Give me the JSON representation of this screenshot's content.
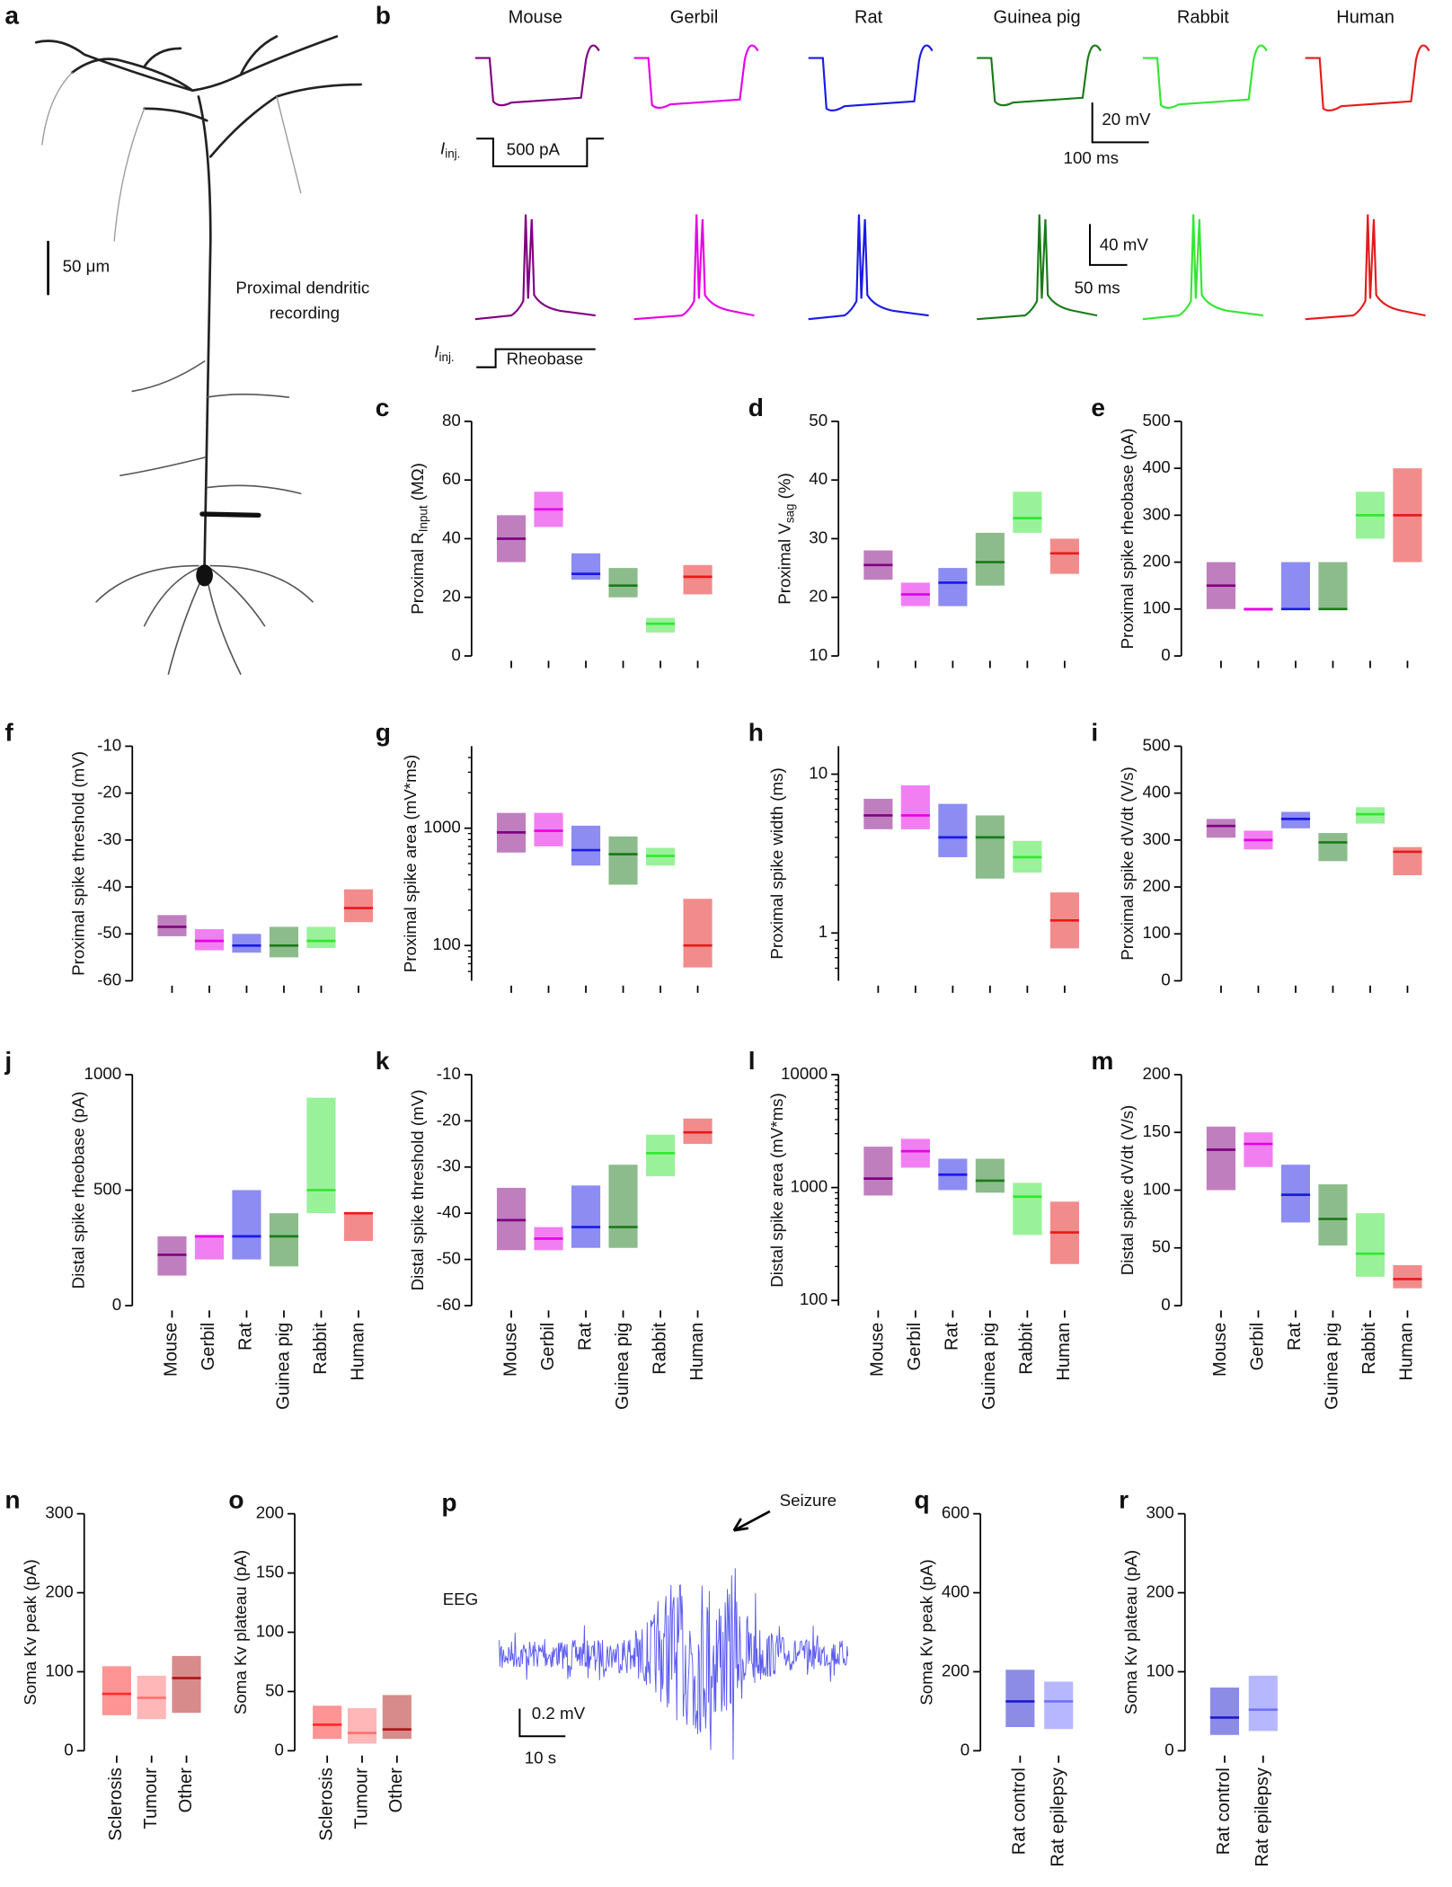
{
  "figure": {
    "a": {
      "letter": "a",
      "scale": "50 μm",
      "note": [
        "Proximal dendritic",
        "recording"
      ]
    },
    "b": {
      "letter": "b",
      "species": [
        {
          "name": "Mouse",
          "color": "#800080"
        },
        {
          "name": "Gerbil",
          "color": "#e600e6"
        },
        {
          "name": "Rat",
          "color": "#1a1ae6"
        },
        {
          "name": "Guinea pig",
          "color": "#1a7a1a"
        },
        {
          "name": "Rabbit",
          "color": "#33e633"
        },
        {
          "name": "Human",
          "color": "#e61a1a"
        }
      ],
      "inj_main": "I",
      "inj_sub": "inj.",
      "step": "500 pA",
      "rheobase": "Rheobase",
      "v1": "20 mV",
      "t1": "100 ms",
      "v2": "40 mV",
      "t2": "50 ms"
    },
    "p": {
      "letter": "p",
      "arrow": "Seizure",
      "trace": "EEG",
      "v": "0.2 mV",
      "t": "10 s"
    }
  },
  "chart_data": [
    {
      "type": "box",
      "panel": "c",
      "ylabel": "Proximal R",
      "ylabel_sub": "Input",
      "ylabel_end": " (MΩ)",
      "ylim": [
        0,
        80
      ],
      "yticks": [
        0,
        20,
        40,
        60,
        80
      ],
      "log": false,
      "boxes": [
        {
          "color": "#800080",
          "q1": 32,
          "median": 40,
          "q3": 48
        },
        {
          "color": "#e600e6",
          "q1": 44,
          "median": 50,
          "q3": 56
        },
        {
          "color": "#1a1ae6",
          "q1": 26,
          "median": 28,
          "q3": 35
        },
        {
          "color": "#1a7a1a",
          "q1": 20,
          "median": 24,
          "q3": 30
        },
        {
          "color": "#33e633",
          "q1": 8,
          "median": 11,
          "q3": 13
        },
        {
          "color": "#e61a1a",
          "q1": 21,
          "median": 27,
          "q3": 31
        }
      ]
    },
    {
      "type": "box",
      "panel": "d",
      "ylabel": "Proximal V",
      "ylabel_sub": "sag",
      "ylabel_end": " (%)",
      "ylim": [
        10,
        50
      ],
      "yticks": [
        10,
        20,
        30,
        40,
        50
      ],
      "log": false,
      "boxes": [
        {
          "color": "#800080",
          "q1": 23,
          "median": 25.5,
          "q3": 28
        },
        {
          "color": "#e600e6",
          "q1": 18.5,
          "median": 20.5,
          "q3": 22.5
        },
        {
          "color": "#1a1ae6",
          "q1": 18.5,
          "median": 22.5,
          "q3": 25
        },
        {
          "color": "#1a7a1a",
          "q1": 22,
          "median": 26,
          "q3": 31
        },
        {
          "color": "#33e633",
          "q1": 31,
          "median": 33.5,
          "q3": 38
        },
        {
          "color": "#e61a1a",
          "q1": 24,
          "median": 27.5,
          "q3": 30
        }
      ]
    },
    {
      "type": "box",
      "panel": "e",
      "ylabel": "Proximal spike rheobase (pA)",
      "ylim": [
        0,
        500
      ],
      "yticks": [
        0,
        100,
        200,
        300,
        400,
        500
      ],
      "log": false,
      "boxes": [
        {
          "color": "#800080",
          "q1": 100,
          "median": 150,
          "q3": 200
        },
        {
          "color": "#e600e6",
          "q1": 100,
          "median": 100,
          "q3": 100
        },
        {
          "color": "#1a1ae6",
          "q1": 100,
          "median": 100,
          "q3": 200
        },
        {
          "color": "#1a7a1a",
          "q1": 100,
          "median": 100,
          "q3": 200
        },
        {
          "color": "#33e633",
          "q1": 250,
          "median": 300,
          "q3": 350
        },
        {
          "color": "#e61a1a",
          "q1": 200,
          "median": 300,
          "q3": 400
        }
      ]
    },
    {
      "type": "box",
      "panel": "f",
      "ylabel": "Proximal spike threshold (mV)",
      "ylim": [
        -60,
        -10
      ],
      "yticks": [
        -60,
        -50,
        -40,
        -30,
        -20,
        -10
      ],
      "log": false,
      "boxes": [
        {
          "color": "#800080",
          "q1": -50.5,
          "median": -48.5,
          "q3": -46
        },
        {
          "color": "#e600e6",
          "q1": -53.5,
          "median": -51.5,
          "q3": -49
        },
        {
          "color": "#1a1ae6",
          "q1": -54,
          "median": -52.5,
          "q3": -50
        },
        {
          "color": "#1a7a1a",
          "q1": -55,
          "median": -52.5,
          "q3": -48.5
        },
        {
          "color": "#33e633",
          "q1": -53,
          "median": -51.5,
          "q3": -48.5
        },
        {
          "color": "#e61a1a",
          "q1": -47.5,
          "median": -44.5,
          "q3": -40.5
        }
      ]
    },
    {
      "type": "box",
      "panel": "g",
      "ylabel": "Proximal spike area (mV*ms)",
      "ylim": [
        50,
        5000
      ],
      "yticks": [
        100,
        1000
      ],
      "log": true,
      "boxes": [
        {
          "color": "#800080",
          "q1": 620,
          "median": 920,
          "q3": 1350
        },
        {
          "color": "#e600e6",
          "q1": 700,
          "median": 950,
          "q3": 1350
        },
        {
          "color": "#1a1ae6",
          "q1": 480,
          "median": 650,
          "q3": 1050
        },
        {
          "color": "#1a7a1a",
          "q1": 330,
          "median": 600,
          "q3": 850
        },
        {
          "color": "#33e633",
          "q1": 480,
          "median": 580,
          "q3": 680
        },
        {
          "color": "#e61a1a",
          "q1": 65,
          "median": 100,
          "q3": 250
        }
      ]
    },
    {
      "type": "box",
      "panel": "h",
      "ylabel": "Proximal spike width (ms)",
      "ylim": [
        0.5,
        15
      ],
      "yticks": [
        1,
        10
      ],
      "log": true,
      "boxes": [
        {
          "color": "#800080",
          "q1": 4.5,
          "median": 5.5,
          "q3": 7
        },
        {
          "color": "#e600e6",
          "q1": 4.5,
          "median": 5.5,
          "q3": 8.5
        },
        {
          "color": "#1a1ae6",
          "q1": 3,
          "median": 4,
          "q3": 6.5
        },
        {
          "color": "#1a7a1a",
          "q1": 2.2,
          "median": 4,
          "q3": 5.5
        },
        {
          "color": "#33e633",
          "q1": 2.4,
          "median": 3,
          "q3": 3.8
        },
        {
          "color": "#e61a1a",
          "q1": 0.8,
          "median": 1.2,
          "q3": 1.8
        }
      ]
    },
    {
      "type": "box",
      "panel": "i",
      "ylabel": "Proximal spike dV/dt (V/s)",
      "ylim": [
        0,
        500
      ],
      "yticks": [
        0,
        100,
        200,
        300,
        400,
        500
      ],
      "log": false,
      "boxes": [
        {
          "color": "#800080",
          "q1": 305,
          "median": 330,
          "q3": 345
        },
        {
          "color": "#e600e6",
          "q1": 280,
          "median": 300,
          "q3": 320
        },
        {
          "color": "#1a1ae6",
          "q1": 325,
          "median": 345,
          "q3": 360
        },
        {
          "color": "#1a7a1a",
          "q1": 255,
          "median": 295,
          "q3": 315
        },
        {
          "color": "#33e633",
          "q1": 335,
          "median": 355,
          "q3": 370
        },
        {
          "color": "#e61a1a",
          "q1": 225,
          "median": 275,
          "q3": 285
        }
      ]
    },
    {
      "type": "box",
      "panel": "j",
      "ylabel": "Distal spike rheobase (pA)",
      "ylim": [
        0,
        1000
      ],
      "yticks": [
        0,
        500,
        1000
      ],
      "log": false,
      "categories": [
        "Mouse",
        "Gerbil",
        "Rat",
        "Guinea pig",
        "Rabbit",
        "Human"
      ],
      "boxes": [
        {
          "color": "#800080",
          "q1": 130,
          "median": 220,
          "q3": 300
        },
        {
          "color": "#e600e6",
          "q1": 200,
          "median": 300,
          "q3": 300
        },
        {
          "color": "#1a1ae6",
          "q1": 200,
          "median": 300,
          "q3": 500
        },
        {
          "color": "#1a7a1a",
          "q1": 170,
          "median": 300,
          "q3": 400
        },
        {
          "color": "#33e633",
          "q1": 400,
          "median": 500,
          "q3": 900
        },
        {
          "color": "#e61a1a",
          "q1": 280,
          "median": 400,
          "q3": 400
        }
      ]
    },
    {
      "type": "box",
      "panel": "k",
      "ylabel": "Distal spike threshold (mV)",
      "ylim": [
        -60,
        -10
      ],
      "yticks": [
        -60,
        -50,
        -40,
        -30,
        -20,
        -10
      ],
      "log": false,
      "categories": [
        "Mouse",
        "Gerbil",
        "Rat",
        "Guinea pig",
        "Rabbit",
        "Human"
      ],
      "boxes": [
        {
          "color": "#800080",
          "q1": -48,
          "median": -41.5,
          "q3": -34.5
        },
        {
          "color": "#e600e6",
          "q1": -48,
          "median": -45.5,
          "q3": -43
        },
        {
          "color": "#1a1ae6",
          "q1": -47.5,
          "median": -43,
          "q3": -34
        },
        {
          "color": "#1a7a1a",
          "q1": -47.5,
          "median": -43,
          "q3": -29.5
        },
        {
          "color": "#33e633",
          "q1": -32,
          "median": -27,
          "q3": -23
        },
        {
          "color": "#e61a1a",
          "q1": -25,
          "median": -22.5,
          "q3": -19.5
        }
      ]
    },
    {
      "type": "box",
      "panel": "l",
      "ylabel": "Distal spike area (mV*ms)",
      "ylim": [
        90,
        10000
      ],
      "yticks": [
        100,
        1000,
        10000
      ],
      "log": true,
      "categories": [
        "Mouse",
        "Gerbil",
        "Rat",
        "Guinea pig",
        "Rabbit",
        "Human"
      ],
      "boxes": [
        {
          "color": "#800080",
          "q1": 850,
          "median": 1200,
          "q3": 2300
        },
        {
          "color": "#e600e6",
          "q1": 1500,
          "median": 2100,
          "q3": 2700
        },
        {
          "color": "#1a1ae6",
          "q1": 950,
          "median": 1300,
          "q3": 1800
        },
        {
          "color": "#1a7a1a",
          "q1": 900,
          "median": 1150,
          "q3": 1800
        },
        {
          "color": "#33e633",
          "q1": 380,
          "median": 830,
          "q3": 1100
        },
        {
          "color": "#e61a1a",
          "q1": 210,
          "median": 400,
          "q3": 750
        }
      ]
    },
    {
      "type": "box",
      "panel": "m",
      "ylabel": "Distal spike dV/dt (V/s)",
      "ylim": [
        0,
        200
      ],
      "yticks": [
        0,
        50,
        100,
        150,
        200
      ],
      "log": false,
      "categories": [
        "Mouse",
        "Gerbil",
        "Rat",
        "Guinea pig",
        "Rabbit",
        "Human"
      ],
      "boxes": [
        {
          "color": "#800080",
          "q1": 100,
          "median": 135,
          "q3": 155
        },
        {
          "color": "#e600e6",
          "q1": 120,
          "median": 140,
          "q3": 150
        },
        {
          "color": "#1a1ae6",
          "q1": 72,
          "median": 96,
          "q3": 122
        },
        {
          "color": "#1a7a1a",
          "q1": 52,
          "median": 75,
          "q3": 105
        },
        {
          "color": "#33e633",
          "q1": 25,
          "median": 45,
          "q3": 80
        },
        {
          "color": "#e61a1a",
          "q1": 15,
          "median": 23,
          "q3": 35
        }
      ]
    },
    {
      "type": "box",
      "panel": "n",
      "ylabel": "Soma Kv peak (pA)",
      "ylim": [
        0,
        300
      ],
      "yticks": [
        0,
        100,
        200,
        300
      ],
      "log": false,
      "categories": [
        "Sclerosis",
        "Tumour",
        "Other"
      ],
      "boxes": [
        {
          "color": "#ff2a2a",
          "q1": 45,
          "median": 72,
          "q3": 107
        },
        {
          "color": "#ff7070",
          "q1": 40,
          "median": 67,
          "q3": 95
        },
        {
          "color": "#b01818",
          "q1": 48,
          "median": 92,
          "q3": 120
        }
      ]
    },
    {
      "type": "box",
      "panel": "o",
      "ylabel": "Soma Kv plateau (pA)",
      "ylim": [
        0,
        200
      ],
      "yticks": [
        0,
        50,
        100,
        150,
        200
      ],
      "log": false,
      "categories": [
        "Sclerosis",
        "Tumour",
        "Other"
      ],
      "boxes": [
        {
          "color": "#ff2a2a",
          "q1": 10,
          "median": 22,
          "q3": 38
        },
        {
          "color": "#ff7070",
          "q1": 6,
          "median": 15,
          "q3": 36
        },
        {
          "color": "#b01818",
          "q1": 10,
          "median": 18,
          "q3": 47
        }
      ]
    },
    {
      "type": "box",
      "panel": "q",
      "ylabel": "Soma Kv peak (pA)",
      "ylim": [
        0,
        600
      ],
      "yticks": [
        0,
        200,
        400,
        600
      ],
      "log": false,
      "categories": [
        "Rat control",
        "Rat epilepsy"
      ],
      "boxes": [
        {
          "color": "#1a1ad0",
          "q1": 60,
          "median": 125,
          "q3": 205
        },
        {
          "color": "#7070ff",
          "q1": 55,
          "median": 125,
          "q3": 175
        }
      ]
    },
    {
      "type": "box",
      "panel": "r",
      "ylabel": "Soma Kv plateau (pA)",
      "ylim": [
        0,
        300
      ],
      "yticks": [
        0,
        100,
        200,
        300
      ],
      "log": false,
      "categories": [
        "Rat control",
        "Rat epilepsy"
      ],
      "boxes": [
        {
          "color": "#1a1ad0",
          "q1": 20,
          "median": 42,
          "q3": 80
        },
        {
          "color": "#7070ff",
          "q1": 25,
          "median": 52,
          "q3": 95
        }
      ]
    }
  ]
}
